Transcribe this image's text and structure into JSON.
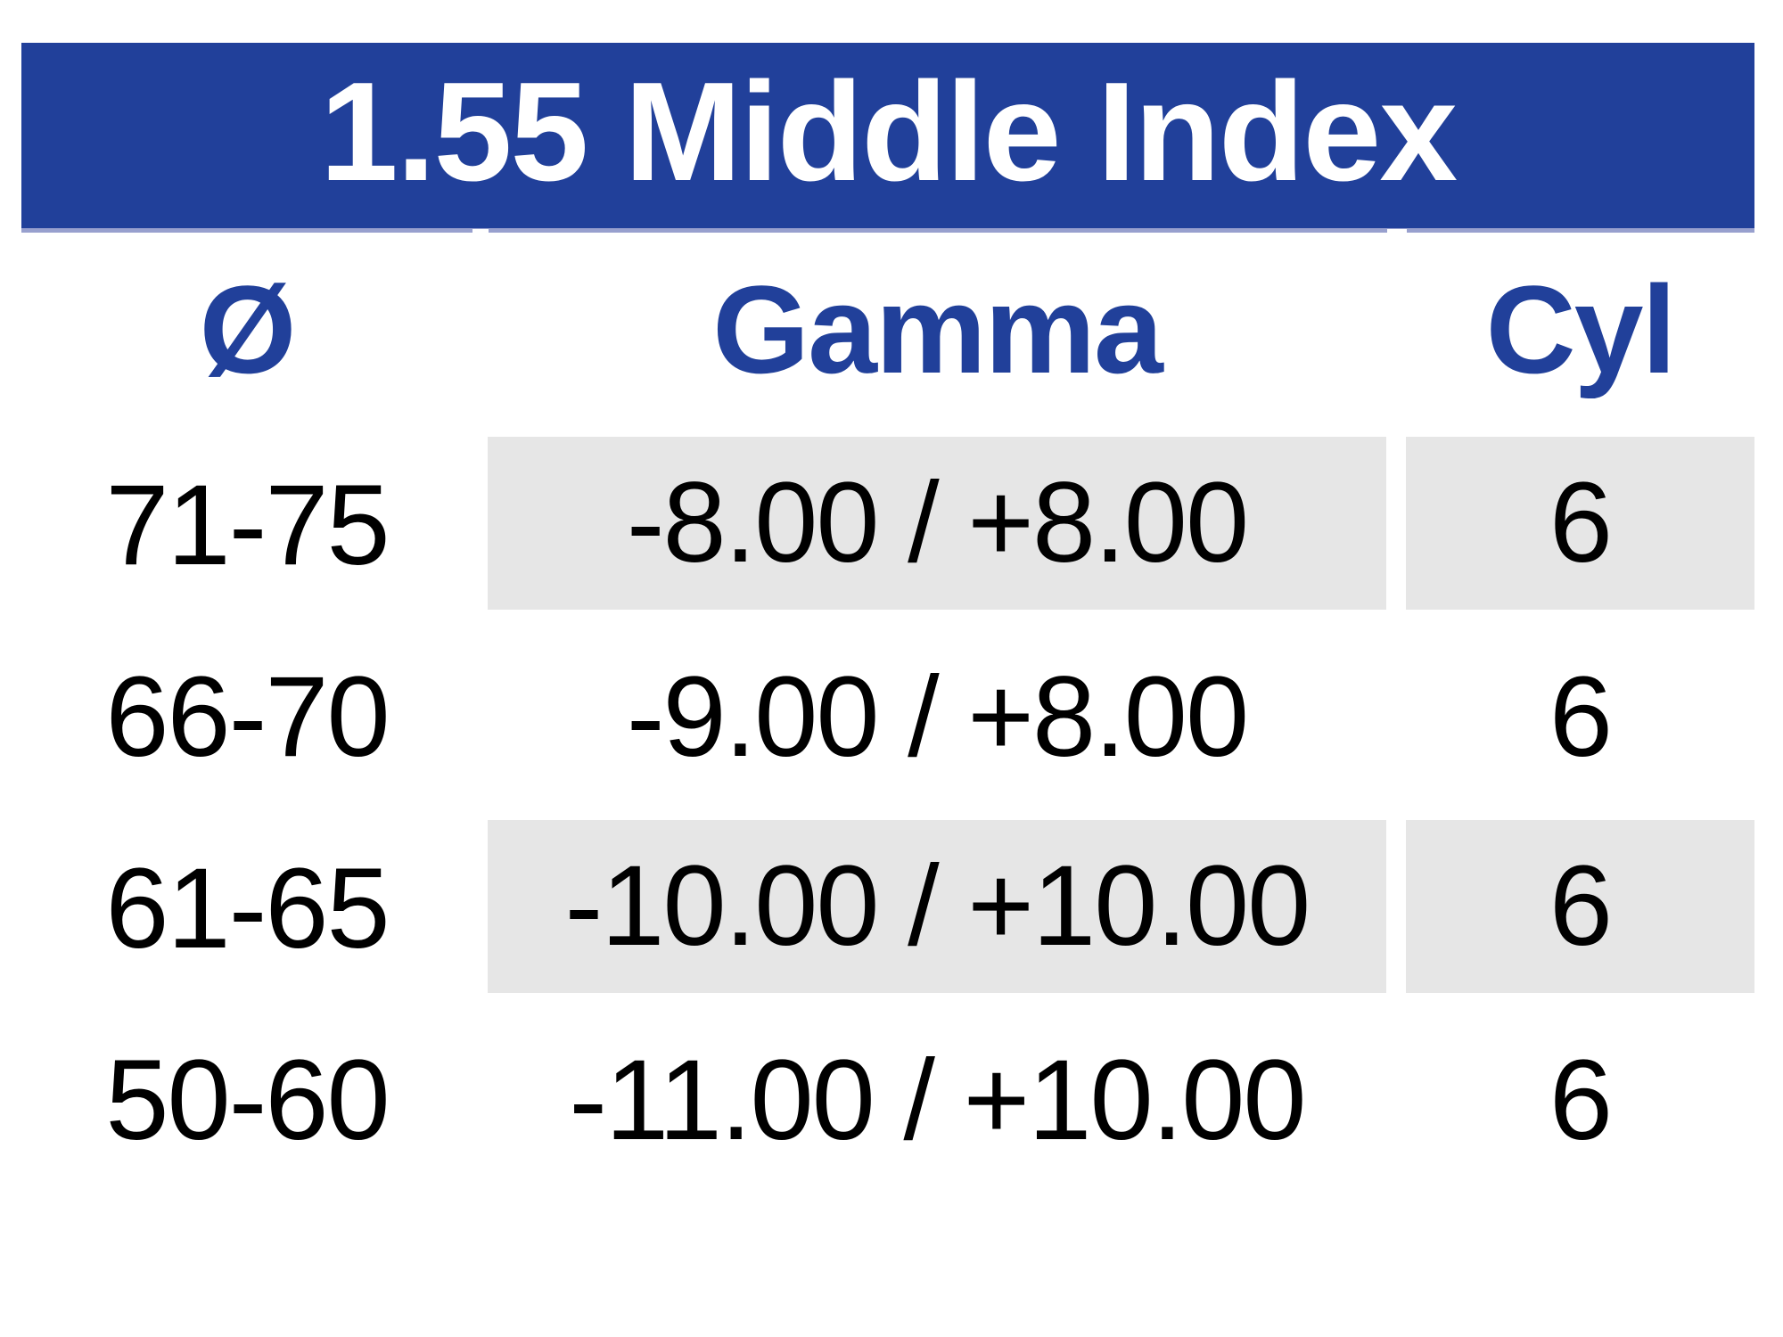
{
  "title": "1.55 Middle Index",
  "table": {
    "columns": [
      {
        "key": "diameter",
        "label": "Ø"
      },
      {
        "key": "gamma",
        "label": "Gamma"
      },
      {
        "key": "cyl",
        "label": "Cyl"
      }
    ],
    "rows": [
      {
        "diameter": "71-75",
        "gamma": "-8.00 / +8.00",
        "cyl": "6",
        "shaded": true
      },
      {
        "diameter": "66-70",
        "gamma": "-9.00 / +8.00",
        "cyl": "6",
        "shaded": false
      },
      {
        "diameter": "61-65",
        "gamma": "-10.00 / +10.00",
        "cyl": "6",
        "shaded": true
      },
      {
        "diameter": "50-60",
        "gamma": "-11.00 / +10.00",
        "cyl": "6",
        "shaded": false
      }
    ]
  },
  "colors": {
    "banner_blue": "#21409A",
    "header_text_blue": "#21409A",
    "row_shade_gray": "#E6E6E6",
    "banner_bottom_edge": "#98A0CE",
    "row_text": "#000000",
    "title_text": "#FFFFFF"
  }
}
